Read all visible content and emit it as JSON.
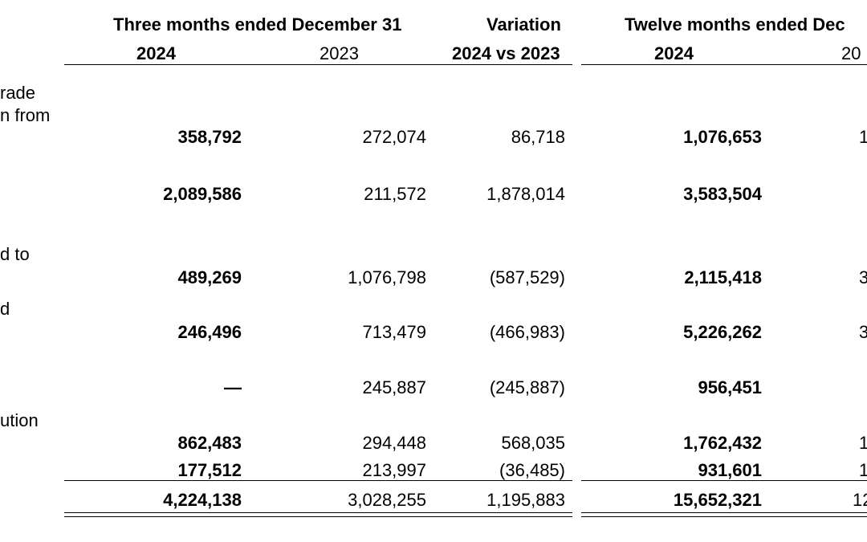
{
  "headers": {
    "three_months": "Three months ended December 31",
    "variation": "Variation",
    "twelve_months": "Twelve months ended Dec"
  },
  "subheaders": {
    "y2024_a": "2024",
    "y2023_a": "2023",
    "var": "2024 vs 2023",
    "y2024_b": "2024",
    "y2023_b": "20"
  },
  "labels": {
    "l1": "rade",
    "l2": "n from",
    "l3": "d to",
    "l4": "d",
    "l5": "ution"
  },
  "rows": [
    {
      "q2024": "358,792",
      "q2023": "272,074",
      "var": "86,718",
      "y2024": "1,076,653",
      "y2023": "1"
    },
    {
      "q2024": "2,089,586",
      "q2023": "211,572",
      "var": "1,878,014",
      "y2024": "3,583,504",
      "y2023": ""
    },
    {
      "q2024": "489,269",
      "q2023": "1,076,798",
      "var": "(587,529)",
      "y2024": "2,115,418",
      "y2023": "3"
    },
    {
      "q2024": "246,496",
      "q2023": "713,479",
      "var": "(466,983)",
      "y2024": "5,226,262",
      "y2023": "3"
    },
    {
      "q2024": "—",
      "q2023": "245,887",
      "var": "(245,887)",
      "y2024": "956,451",
      "y2023": ""
    },
    {
      "q2024": "862,483",
      "q2023": "294,448",
      "var": "568,035",
      "y2024": "1,762,432",
      "y2023": "1"
    },
    {
      "q2024": "177,512",
      "q2023": "213,997",
      "var": "(36,485)",
      "y2024": "931,601",
      "y2023": "1"
    }
  ],
  "total": {
    "q2024": "4,224,138",
    "q2023": "3,028,255",
    "var": "1,195,883",
    "y2024": "15,652,321",
    "y2023": "12"
  }
}
